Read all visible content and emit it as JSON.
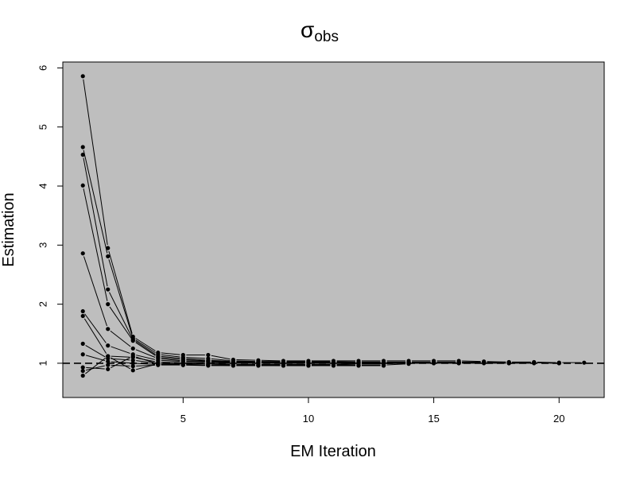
{
  "chart_data": {
    "type": "line",
    "title": "σ",
    "title_subscript": "obs",
    "xlabel": "EM Iteration",
    "ylabel": "Estimation",
    "xlim": [
      0.2,
      21.8
    ],
    "ylim": [
      0.42,
      6.1
    ],
    "x_ticks": [
      5,
      10,
      15,
      20
    ],
    "y_ticks": [
      1,
      2,
      3,
      4,
      5,
      6
    ],
    "reference_line": {
      "y": 1,
      "style": "dashed"
    },
    "background_color": "#bebebe",
    "series_color": "#000000",
    "grid": false,
    "legend": "none",
    "series": [
      {
        "x": [
          1,
          2,
          3,
          4,
          5,
          6,
          7,
          8,
          9,
          10,
          11,
          12,
          13,
          14,
          15,
          16,
          17,
          18,
          19,
          20,
          21
        ],
        "values": [
          5.86,
          2.95,
          1.45,
          1.18,
          1.14,
          1.14,
          1.06,
          1.05,
          1.04,
          1.04,
          1.04,
          1.04,
          1.04,
          1.04,
          1.04,
          1.04,
          1.03,
          1.02,
          1.02,
          1.01,
          1.01
        ]
      },
      {
        "x": [
          1,
          2,
          3,
          4,
          5,
          6,
          7,
          8,
          9,
          10,
          11,
          12,
          13,
          14,
          15,
          16,
          17,
          18,
          19,
          20
        ],
        "values": [
          4.66,
          2.81,
          1.42,
          1.15,
          1.1,
          1.08,
          1.04,
          1.03,
          1.03,
          1.03,
          1.03,
          1.02,
          1.02,
          1.02,
          1.02,
          1.02,
          1.02,
          1.02,
          1.01,
          1.01
        ]
      },
      {
        "x": [
          1,
          2,
          3,
          4,
          5,
          6,
          7,
          8,
          9,
          10,
          11,
          12,
          13,
          14,
          15,
          16,
          17,
          18,
          19,
          20
        ],
        "values": [
          4.53,
          2.25,
          1.4,
          1.12,
          1.08,
          1.05,
          1.03,
          1.02,
          1.02,
          1.02,
          1.02,
          1.02,
          1.02,
          1.02,
          1.02,
          1.02,
          1.01,
          1.01,
          1.01,
          1.0
        ]
      },
      {
        "x": [
          1,
          2,
          3,
          4,
          5,
          6,
          7,
          8,
          9,
          10,
          11,
          12,
          13,
          14,
          15,
          16,
          17,
          18,
          19,
          20
        ],
        "values": [
          4.01,
          2.0,
          1.38,
          1.1,
          1.06,
          1.04,
          1.03,
          1.02,
          1.02,
          1.02,
          1.02,
          1.02,
          1.02,
          1.01,
          1.01,
          1.01,
          1.01,
          1.01,
          1.01,
          1.0
        ]
      },
      {
        "x": [
          1,
          2,
          3,
          4,
          5,
          6,
          7,
          8,
          9,
          10,
          11,
          12,
          13,
          14,
          15,
          16,
          17,
          18,
          19
        ],
        "values": [
          2.86,
          1.58,
          1.25,
          1.08,
          1.04,
          1.03,
          1.02,
          1.01,
          1.01,
          1.01,
          1.01,
          1.01,
          1.01,
          1.01,
          1.01,
          1.01,
          1.01,
          1.0,
          1.0
        ]
      },
      {
        "x": [
          1,
          2,
          3,
          4,
          5,
          6,
          7,
          8,
          9,
          10,
          11,
          12,
          13,
          14,
          15,
          16,
          17,
          18
        ],
        "values": [
          1.88,
          1.3,
          1.15,
          1.05,
          1.03,
          1.02,
          1.01,
          1.01,
          1.0,
          1.0,
          1.0,
          1.0,
          1.0,
          1.0,
          1.0,
          1.0,
          1.0,
          1.0
        ]
      },
      {
        "x": [
          1,
          2,
          3,
          4,
          5,
          6,
          7,
          8,
          9,
          10,
          11,
          12,
          13,
          14,
          15,
          16
        ],
        "values": [
          1.8,
          1.12,
          1.1,
          1.02,
          1.01,
          1.0,
          1.0,
          1.0,
          1.0,
          1.0,
          1.0,
          1.0,
          1.0,
          1.01,
          1.01,
          1.0
        ]
      },
      {
        "x": [
          1,
          2,
          3,
          4,
          5,
          6,
          7,
          8,
          9,
          10,
          11,
          12,
          13,
          14,
          15
        ],
        "values": [
          1.33,
          1.08,
          1.05,
          1.0,
          0.99,
          0.99,
          0.98,
          0.98,
          0.98,
          0.98,
          0.98,
          0.99,
          0.99,
          1.0,
          1.0
        ]
      },
      {
        "x": [
          1,
          2,
          3,
          4,
          5,
          6,
          7,
          8,
          9,
          10,
          11,
          12,
          13,
          14
        ],
        "values": [
          1.15,
          1.03,
          1.0,
          0.98,
          0.98,
          0.97,
          0.97,
          0.97,
          0.96,
          0.96,
          0.97,
          0.97,
          0.97,
          0.99
        ]
      },
      {
        "x": [
          1,
          2,
          3,
          4,
          5,
          6,
          7,
          8,
          9,
          10,
          11,
          12,
          13
        ],
        "values": [
          0.93,
          0.9,
          1.12,
          0.99,
          0.97,
          0.97,
          0.96,
          0.96,
          0.96,
          0.96,
          0.96,
          0.96,
          0.96
        ]
      },
      {
        "x": [
          1,
          2,
          3,
          4,
          5,
          6,
          7,
          8,
          9,
          10,
          11,
          12,
          13
        ],
        "values": [
          0.87,
          0.97,
          0.95,
          0.97,
          0.97,
          0.96,
          0.96,
          0.96,
          0.96,
          0.96,
          0.96,
          0.96,
          0.96
        ]
      },
      {
        "x": [
          1,
          2,
          3,
          4,
          5,
          6,
          7,
          8,
          9,
          10,
          11,
          12,
          13
        ],
        "values": [
          0.79,
          1.12,
          0.88,
          0.99,
          0.98,
          0.97,
          0.97,
          0.97,
          0.97,
          0.97,
          0.97,
          0.97,
          0.97
        ]
      }
    ]
  }
}
